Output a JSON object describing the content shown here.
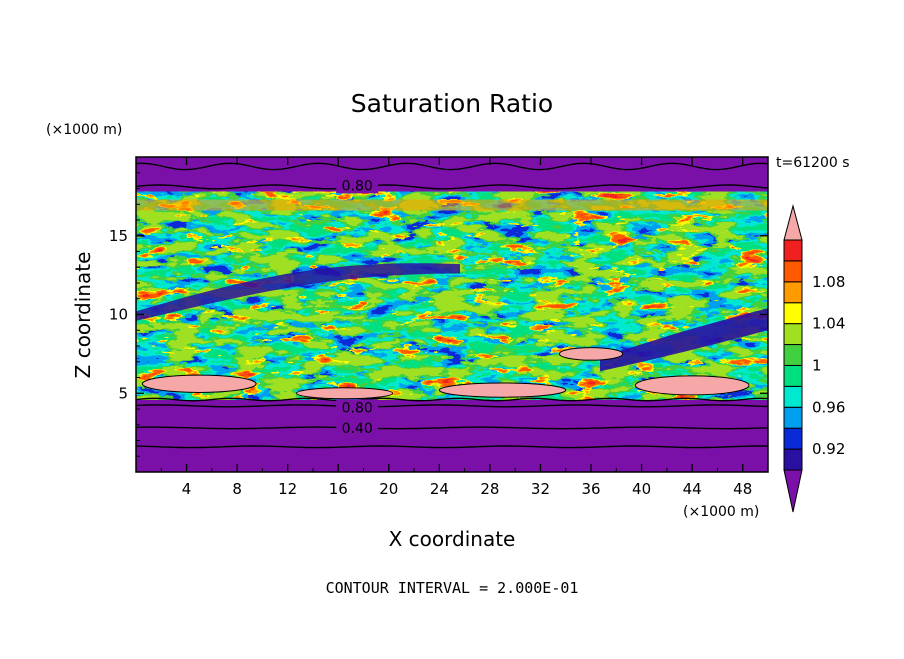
{
  "chart_data": {
    "type": "heatmap",
    "title": "Saturation Ratio",
    "xlabel": "X coordinate",
    "ylabel": "Z coordinate",
    "x_unit_label": "(×1000 m)",
    "y_unit_label": "(×1000 m)",
    "time_label": "t=61200 s",
    "footer": "CONTOUR INTERVAL = 2.000E-01",
    "xlim": [
      0,
      50
    ],
    "ylim": [
      0,
      20
    ],
    "x_ticks": [
      "4",
      "8",
      "12",
      "16",
      "20",
      "24",
      "28",
      "32",
      "36",
      "40",
      "44",
      "48"
    ],
    "y_ticks": [
      "5",
      "10",
      "15"
    ],
    "contour_labels": [
      {
        "text": "0.80",
        "x": 17.5,
        "y": 18.2
      },
      {
        "text": "0.80",
        "x": 17.5,
        "y": 4.1
      },
      {
        "text": "0.40",
        "x": 17.5,
        "y": 2.8
      }
    ],
    "colorbar": {
      "labels": [
        "1.08",
        "1.04",
        "1",
        "0.96",
        "0.92"
      ],
      "levels": [
        0.92,
        0.94,
        0.96,
        0.98,
        1.0,
        1.02,
        1.04,
        1.06,
        1.08
      ],
      "colors": [
        "#7b10a8",
        "#2a10a0",
        "#0a2ad8",
        "#00a0f0",
        "#00e8d0",
        "#00e080",
        "#40d040",
        "#a0e020",
        "#ffff00",
        "#ff9a00",
        "#ff5a00",
        "#f02020",
        "#f6a8a8"
      ]
    },
    "layers": [
      {
        "zmin": 0,
        "zmax": 4.6,
        "value": "< 0.92"
      },
      {
        "zmin": 4.6,
        "zmax": 17.8,
        "value": "~0.92 to >1.08 (mixed field)"
      },
      {
        "zmin": 17.8,
        "zmax": 20,
        "value": "< 0.92"
      }
    ]
  }
}
